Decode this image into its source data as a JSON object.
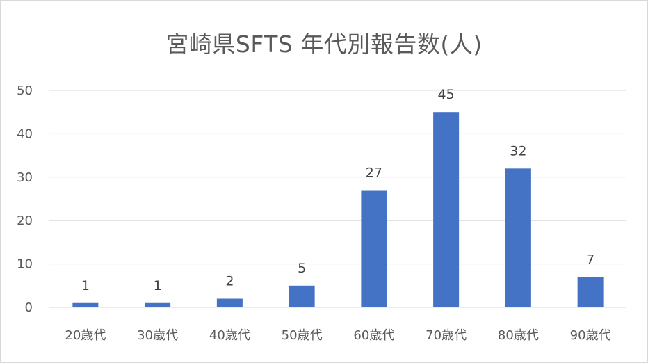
{
  "chart_data": {
    "type": "bar",
    "title": "宮崎県SFTS 年代別報告数(人)",
    "xlabel": "",
    "ylabel": "",
    "ylim": [
      0,
      50
    ],
    "yticks": [
      0,
      10,
      20,
      30,
      40,
      50
    ],
    "categories": [
      "20歳代",
      "30歳代",
      "40歳代",
      "50歳代",
      "60歳代",
      "70歳代",
      "80歳代",
      "90歳代"
    ],
    "values": [
      1,
      1,
      2,
      5,
      27,
      45,
      32,
      7
    ],
    "data_labels": true,
    "grid": true,
    "legend": "none",
    "bar_color": "#4472c4"
  }
}
